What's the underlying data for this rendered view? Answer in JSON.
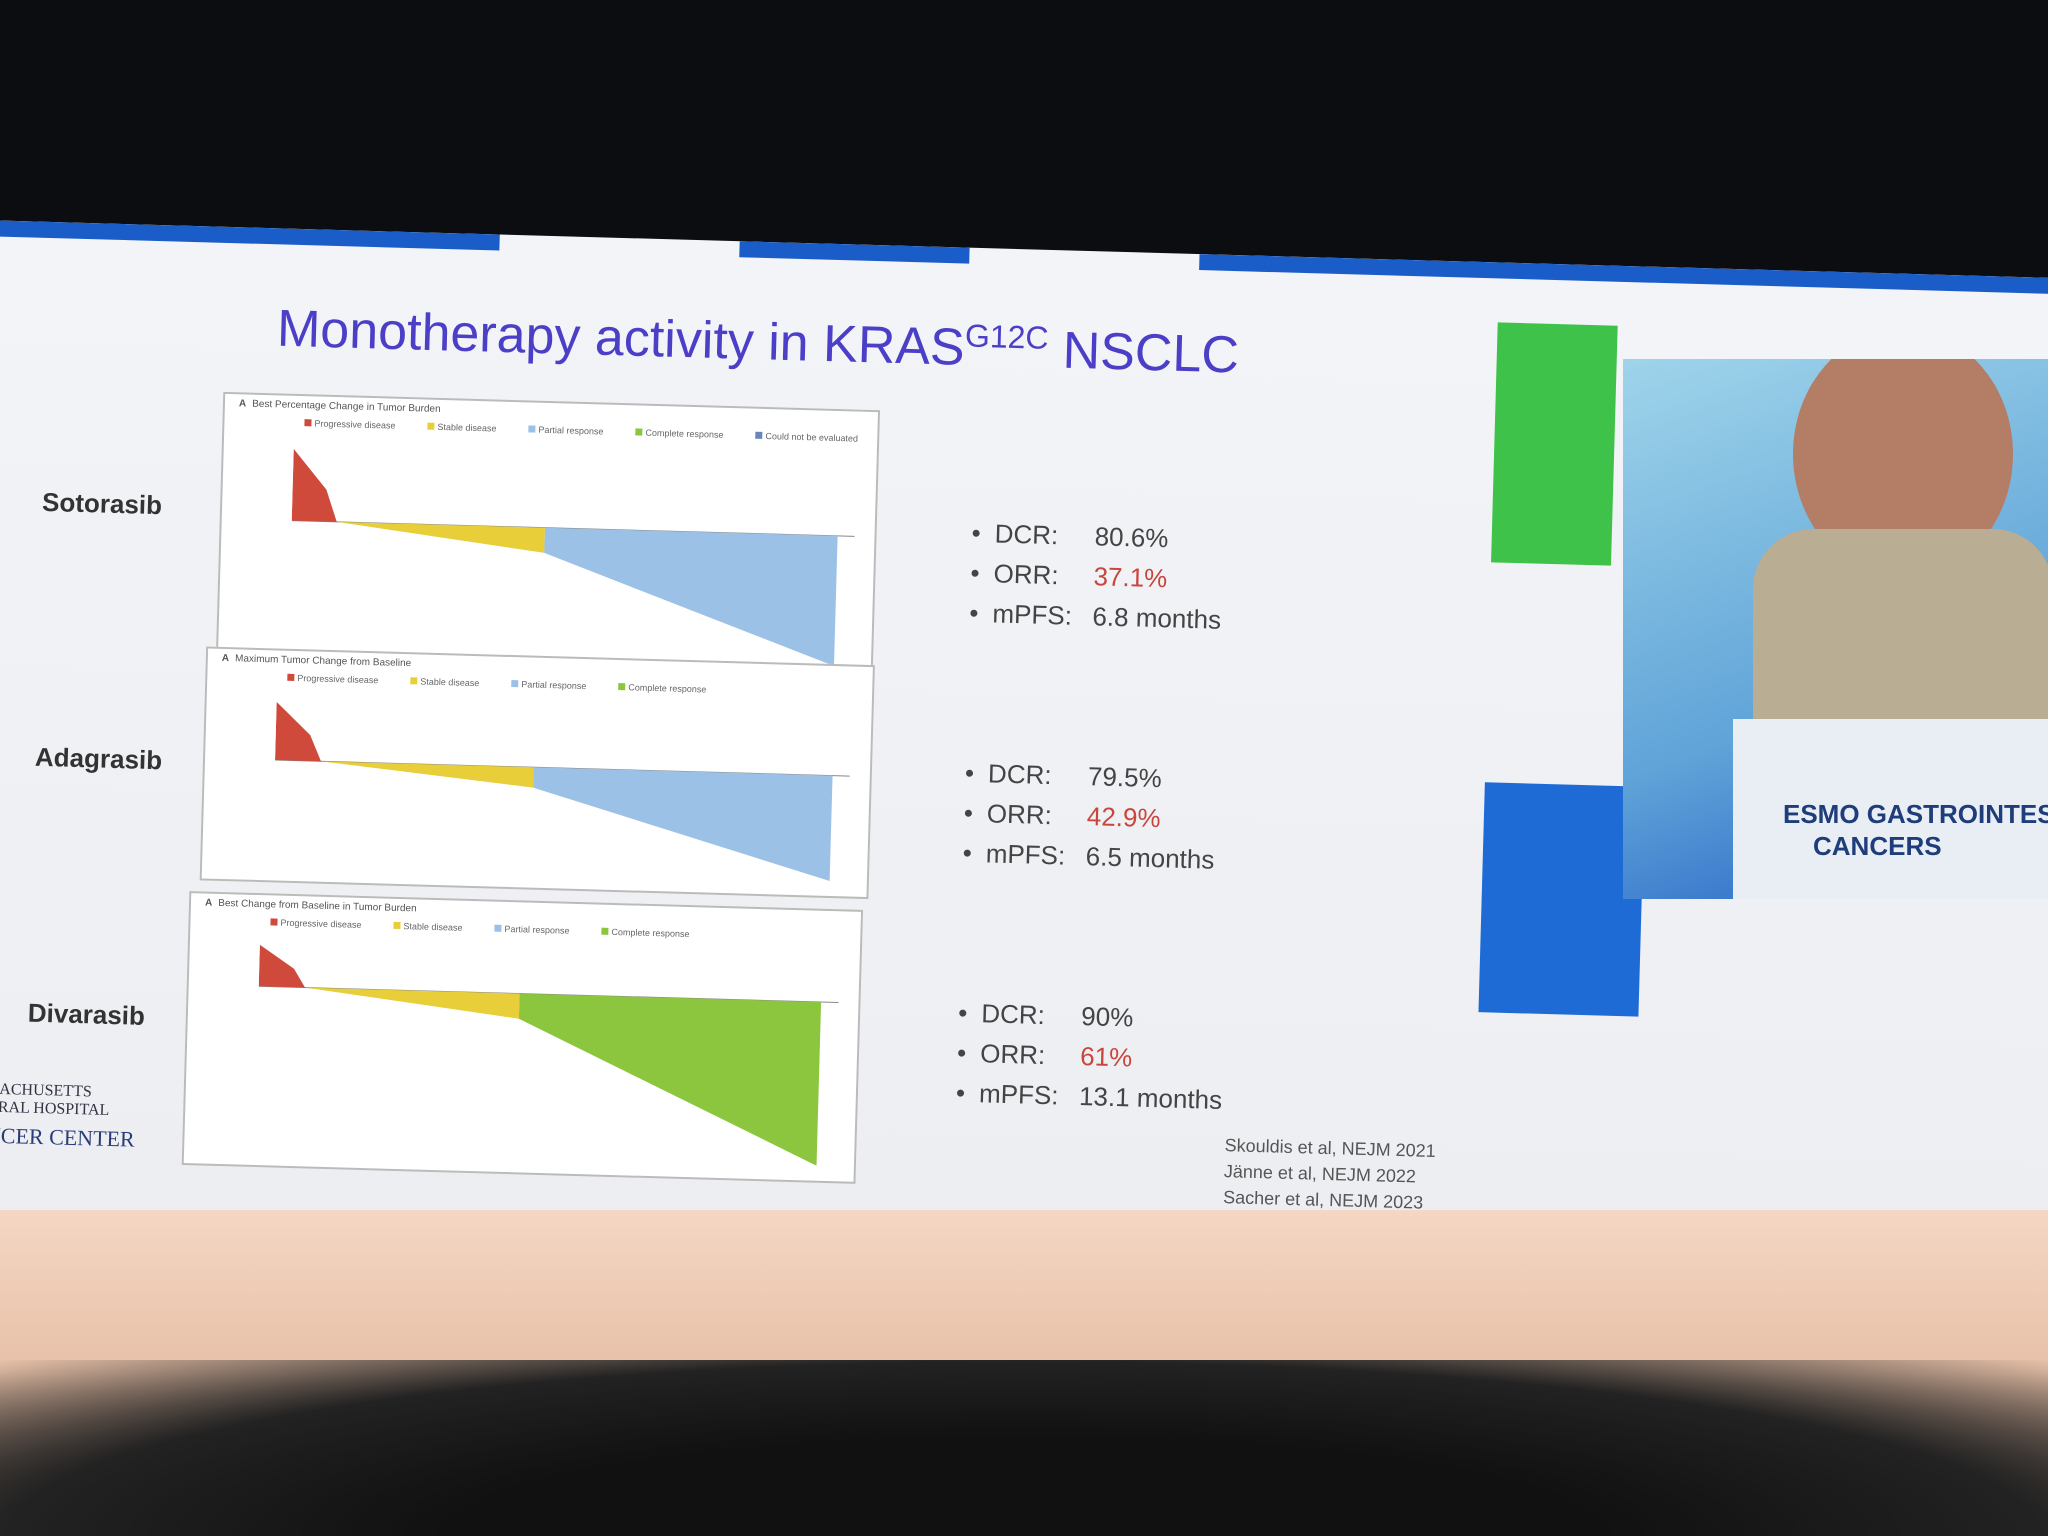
{
  "slide": {
    "title": {
      "main": "Monotherapy activity in KRAS",
      "superscript": "G12C",
      "suffix": "NSCLC"
    },
    "drugs": [
      {
        "name": "Sotorasib",
        "panel": {
          "label": "A",
          "title": "Best Percentage Change in Tumor Burden",
          "legend": [
            "Progressive disease",
            "Stable disease",
            "Partial response",
            "Complete response",
            "Could not be evaluated"
          ]
        },
        "stats": [
          {
            "label": "DCR:",
            "value": "80.6%"
          },
          {
            "label": "ORR:",
            "value": "37.1%"
          },
          {
            "label": "mPFS:",
            "value": "6.8 months"
          }
        ]
      },
      {
        "name": "Adagrasib",
        "panel": {
          "label": "A",
          "title": "Maximum Tumor Change from Baseline",
          "legend": [
            "Progressive disease",
            "Stable disease",
            "Partial response",
            "Complete response"
          ]
        },
        "stats": [
          {
            "label": "DCR:",
            "value": "79.5%"
          },
          {
            "label": "ORR:",
            "value": "42.9%"
          },
          {
            "label": "mPFS:",
            "value": "6.5 months"
          }
        ]
      },
      {
        "name": "Divarasib",
        "panel": {
          "label": "A",
          "title": "Best Change from Baseline in Tumor Burden",
          "legend": [
            "Progressive disease",
            "Stable disease",
            "Partial response",
            "Complete response"
          ]
        },
        "stats": [
          {
            "label": "DCR:",
            "value": "90%"
          },
          {
            "label": "ORR:",
            "value": "61%"
          },
          {
            "label": "mPFS:",
            "value": "13.1 months"
          }
        ]
      }
    ],
    "references": [
      "Skouldis et al, NEJM 2021",
      "Jänne et al, NEJM 2022",
      "Sacher et al, NEJM 2023"
    ],
    "logo": [
      "MASSACHUSETTS",
      "GENERAL HOSPITAL",
      "CANCER CENTER"
    ]
  },
  "video": {
    "banner": [
      "ESMO GASTROINTEST",
      "CANCERS"
    ]
  }
}
